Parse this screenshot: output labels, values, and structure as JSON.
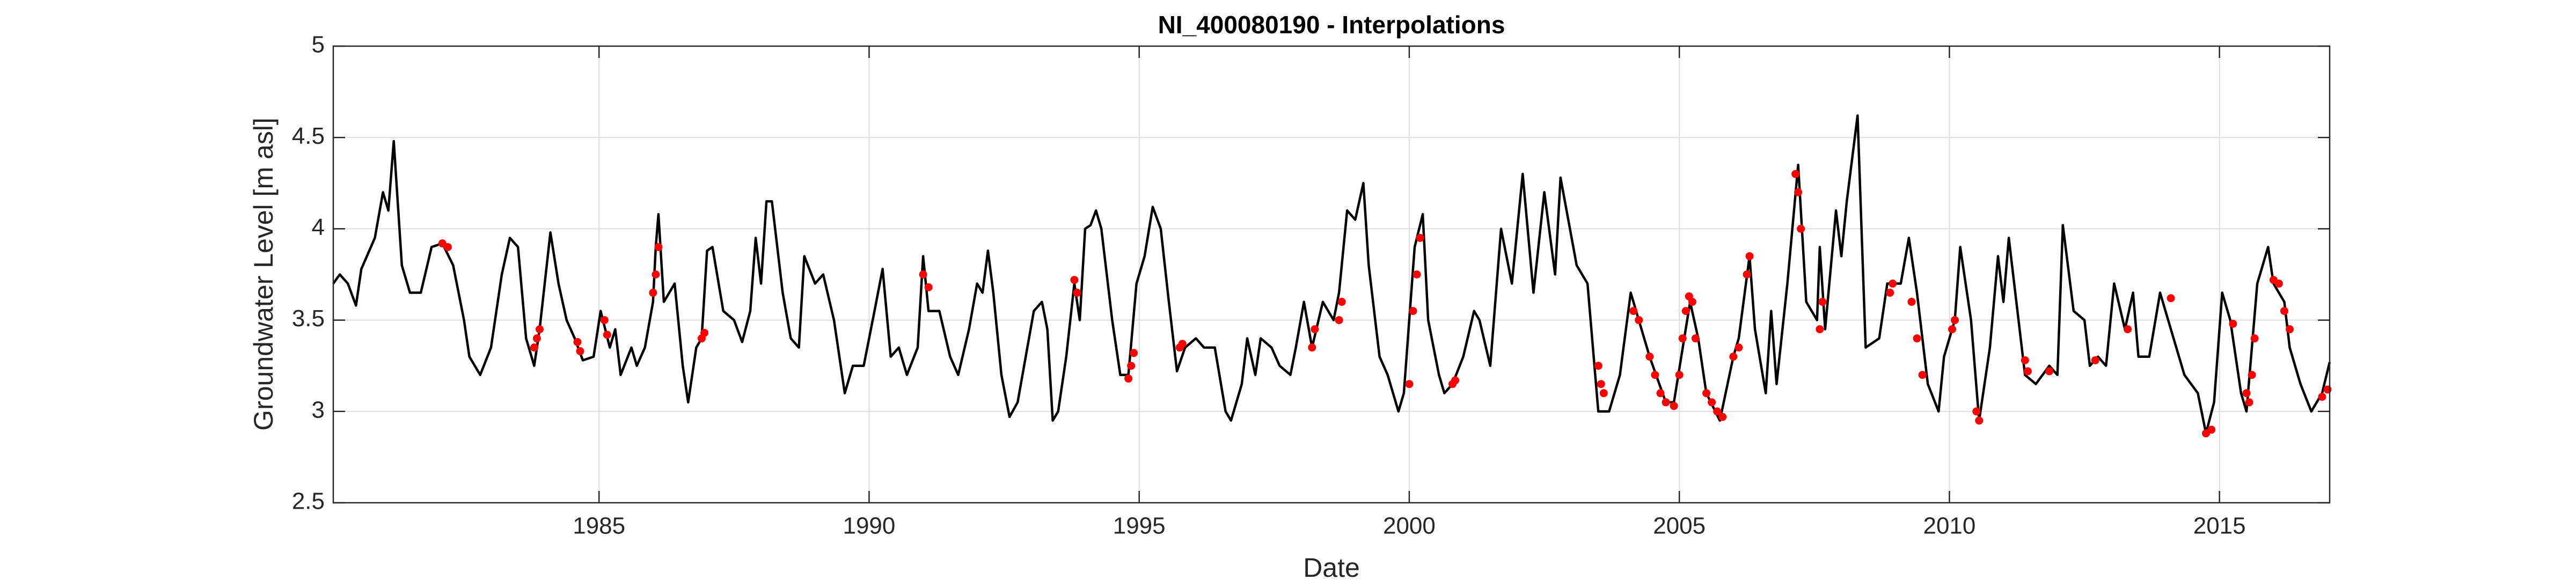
{
  "chart_data": {
    "type": "line",
    "title": "NI_400080190 - Interpolations",
    "xlabel": "Date",
    "ylabel": "Groundwater Level [m asl]",
    "xlim": [
      1980.08,
      2017.04
    ],
    "xticks": [
      1985,
      1990,
      1995,
      2000,
      2005,
      2010,
      2015
    ],
    "ylim": [
      2.5,
      5
    ],
    "yticks": [
      2.5,
      3,
      3.5,
      4,
      4.5,
      5
    ],
    "grid": true,
    "series": [
      {
        "color": "#000000",
        "mode": "line",
        "x": [
          1980.08,
          1980.2,
          1980.35,
          1980.5,
          1980.6,
          1980.85,
          1981.0,
          1981.1,
          1981.2,
          1981.35,
          1981.5,
          1981.7,
          1981.9,
          1982.1,
          1982.3,
          1982.5,
          1982.6,
          1982.8,
          1983.0,
          1983.2,
          1983.35,
          1983.5,
          1983.65,
          1983.8,
          1983.9,
          1984.1,
          1984.25,
          1984.4,
          1984.55,
          1984.7,
          1984.9,
          1985.03,
          1985.2,
          1985.3,
          1985.4,
          1985.6,
          1985.7,
          1985.85,
          1986.0,
          1986.05,
          1986.1,
          1986.2,
          1986.4,
          1986.55,
          1986.65,
          1986.8,
          1986.9,
          1987.0,
          1987.1,
          1987.3,
          1987.5,
          1987.65,
          1987.8,
          1987.9,
          1988.0,
          1988.1,
          1988.2,
          1988.4,
          1988.55,
          1988.7,
          1988.8,
          1989.0,
          1989.15,
          1989.35,
          1989.55,
          1989.7,
          1989.9,
          1990.1,
          1990.25,
          1990.4,
          1990.55,
          1990.7,
          1990.9,
          1991.0,
          1991.1,
          1991.3,
          1991.5,
          1991.65,
          1991.85,
          1992.0,
          1992.1,
          1992.2,
          1992.3,
          1992.45,
          1992.6,
          1992.75,
          1992.9,
          1993.05,
          1993.2,
          1993.3,
          1993.4,
          1993.5,
          1993.65,
          1993.8,
          1993.9,
          1994.0,
          1994.1,
          1994.2,
          1994.3,
          1994.5,
          1994.65,
          1994.8,
          1994.95,
          1995.1,
          1995.25,
          1995.4,
          1995.55,
          1995.7,
          1995.85,
          1996.05,
          1996.2,
          1996.4,
          1996.6,
          1996.7,
          1996.9,
          1997.0,
          1997.15,
          1997.25,
          1997.45,
          1997.6,
          1997.8,
          1997.9,
          1998.05,
          1998.2,
          1998.4,
          1998.6,
          1998.7,
          1998.85,
          1999.0,
          1999.15,
          1999.25,
          1999.45,
          1999.6,
          1999.8,
          1999.9,
          2000.0,
          2000.1,
          2000.25,
          2000.35,
          2000.55,
          2000.65,
          2000.8,
          2001.0,
          2001.2,
          2001.3,
          2001.5,
          2001.7,
          2001.9,
          2002.1,
          2002.3,
          2002.5,
          2002.7,
          2002.8,
          2003.1,
          2003.3,
          2003.5,
          2003.7,
          2003.9,
          2004.1,
          2004.3,
          2004.45,
          2004.75,
          2004.9,
          2005.2,
          2005.35,
          2005.5,
          2005.75,
          2006.0,
          2006.1,
          2006.3,
          2006.4,
          2006.6,
          2006.7,
          2006.8,
          2007.0,
          2007.2,
          2007.35,
          2007.55,
          2007.6,
          2007.7,
          2007.9,
          2008.0,
          2008.1,
          2008.3,
          2008.45,
          2008.7,
          2008.85,
          2009.1,
          2009.25,
          2009.4,
          2009.6,
          2009.8,
          2009.9,
          2010.1,
          2010.2,
          2010.4,
          2010.55,
          2010.75,
          2010.9,
          2011.0,
          2011.1,
          2011.4,
          2011.6,
          2011.85,
          2012.0,
          2012.1,
          2012.3,
          2012.5,
          2012.6,
          2012.75,
          2012.9,
          2013.05,
          2013.25,
          2013.4,
          2013.5,
          2013.7,
          2013.9,
          2014.1,
          2014.35,
          2014.6,
          2014.75,
          2014.9,
          2015.05,
          2015.2,
          2015.4,
          2015.5,
          2015.7,
          2015.9,
          2016.0,
          2016.2,
          2016.3,
          2016.5,
          2016.7,
          2016.9,
          2017.04
        ],
        "values": [
          3.7,
          3.75,
          3.7,
          3.58,
          3.78,
          3.95,
          4.2,
          4.1,
          4.48,
          3.8,
          3.65,
          3.65,
          3.9,
          3.92,
          3.8,
          3.5,
          3.3,
          3.2,
          3.35,
          3.75,
          3.95,
          3.9,
          3.4,
          3.25,
          3.45,
          3.98,
          3.7,
          3.5,
          3.4,
          3.28,
          3.3,
          3.55,
          3.35,
          3.45,
          3.2,
          3.35,
          3.25,
          3.35,
          3.6,
          3.9,
          4.08,
          3.6,
          3.7,
          3.25,
          3.05,
          3.35,
          3.4,
          3.88,
          3.9,
          3.55,
          3.5,
          3.38,
          3.55,
          3.95,
          3.7,
          4.15,
          4.15,
          3.65,
          3.4,
          3.35,
          3.85,
          3.7,
          3.75,
          3.5,
          3.1,
          3.25,
          3.25,
          3.55,
          3.78,
          3.3,
          3.35,
          3.2,
          3.35,
          3.85,
          3.55,
          3.55,
          3.3,
          3.2,
          3.45,
          3.7,
          3.65,
          3.88,
          3.65,
          3.2,
          2.97,
          3.05,
          3.3,
          3.55,
          3.6,
          3.45,
          2.95,
          3.0,
          3.3,
          3.7,
          3.5,
          4.0,
          4.02,
          4.1,
          4.0,
          3.5,
          3.2,
          3.2,
          3.7,
          3.85,
          4.12,
          4.0,
          3.6,
          3.22,
          3.35,
          3.4,
          3.35,
          3.35,
          3.0,
          2.95,
          3.15,
          3.4,
          3.2,
          3.4,
          3.35,
          3.25,
          3.2,
          3.35,
          3.6,
          3.35,
          3.6,
          3.5,
          3.65,
          4.1,
          4.05,
          4.25,
          3.8,
          3.3,
          3.2,
          3.0,
          3.1,
          3.5,
          3.9,
          4.08,
          3.5,
          3.2,
          3.1,
          3.15,
          3.3,
          3.55,
          3.5,
          3.25,
          4.0,
          3.7,
          4.3,
          3.65,
          4.2,
          3.75,
          4.28,
          3.8,
          3.7,
          3.0,
          3.0,
          3.2,
          3.65,
          3.45,
          3.3,
          3.05,
          3.05,
          3.6,
          3.4,
          3.1,
          2.95,
          3.3,
          3.4,
          3.85,
          3.45,
          3.1,
          3.55,
          3.15,
          3.7,
          4.35,
          3.6,
          3.5,
          3.9,
          3.45,
          4.1,
          3.85,
          4.15,
          4.62,
          3.35,
          3.4,
          3.7,
          3.7,
          3.95,
          3.65,
          3.15,
          3.0,
          3.3,
          3.5,
          3.9,
          3.5,
          2.95,
          3.35,
          3.85,
          3.6,
          3.95,
          3.2,
          3.15,
          3.25,
          3.2,
          4.02,
          3.55,
          3.5,
          3.25,
          3.3,
          3.25,
          3.7,
          3.45,
          3.65,
          3.3,
          3.3,
          3.65,
          3.45,
          3.2,
          3.1,
          2.88,
          3.05,
          3.65,
          3.5,
          3.1,
          3.0,
          3.7,
          3.9,
          3.7,
          3.6,
          3.35,
          3.15,
          3.0,
          3.1,
          3.27
        ]
      },
      {
        "color": "#ff0000",
        "mode": "markers",
        "x": [
          1982.1,
          1982.2,
          1983.8,
          1983.85,
          1983.9,
          1984.6,
          1984.65,
          1985.1,
          1985.15,
          1986.0,
          1986.05,
          1986.1,
          1986.9,
          1986.95,
          1991.0,
          1991.1,
          1993.8,
          1993.85,
          1994.8,
          1994.85,
          1994.9,
          1995.75,
          1995.8,
          1998.2,
          1998.25,
          1998.7,
          1998.75,
          2000.0,
          2000.07,
          2000.14,
          2000.2,
          2000.8,
          2000.85,
          2003.5,
          2003.55,
          2003.6,
          2004.15,
          2004.25,
          2004.45,
          2004.55,
          2004.65,
          2004.75,
          2004.9,
          2005.0,
          2005.06,
          2005.12,
          2005.18,
          2005.24,
          2005.3,
          2005.5,
          2005.6,
          2005.7,
          2005.8,
          2006.0,
          2006.1,
          2006.25,
          2006.3,
          2007.15,
          2007.2,
          2007.25,
          2007.6,
          2007.65,
          2008.9,
          2008.95,
          2009.3,
          2009.4,
          2009.5,
          2010.05,
          2010.1,
          2010.5,
          2010.55,
          2011.4,
          2011.45,
          2011.85,
          2012.7,
          2013.3,
          2014.1,
          2014.75,
          2014.85,
          2015.25,
          2015.5,
          2015.55,
          2015.6,
          2015.65,
          2016.0,
          2016.1,
          2016.2,
          2016.3,
          2016.9,
          2017.0
        ],
        "values": [
          3.92,
          3.9,
          3.35,
          3.4,
          3.45,
          3.38,
          3.33,
          3.5,
          3.42,
          3.65,
          3.75,
          3.9,
          3.4,
          3.43,
          3.75,
          3.68,
          3.72,
          3.65,
          3.18,
          3.25,
          3.32,
          3.35,
          3.37,
          3.35,
          3.45,
          3.5,
          3.6,
          3.15,
          3.55,
          3.75,
          3.95,
          3.15,
          3.17,
          3.25,
          3.15,
          3.1,
          3.55,
          3.5,
          3.3,
          3.2,
          3.1,
          3.05,
          3.03,
          3.2,
          3.4,
          3.55,
          3.63,
          3.6,
          3.4,
          3.1,
          3.05,
          3.0,
          2.97,
          3.3,
          3.35,
          3.75,
          3.85,
          4.3,
          4.2,
          4.0,
          3.45,
          3.6,
          3.65,
          3.7,
          3.6,
          3.4,
          3.2,
          3.45,
          3.5,
          3.0,
          2.95,
          3.28,
          3.22,
          3.22,
          3.28,
          3.45,
          3.62,
          2.88,
          2.9,
          3.48,
          3.1,
          3.05,
          3.2,
          3.4,
          3.72,
          3.7,
          3.55,
          3.45,
          3.08,
          3.12
        ]
      }
    ]
  }
}
